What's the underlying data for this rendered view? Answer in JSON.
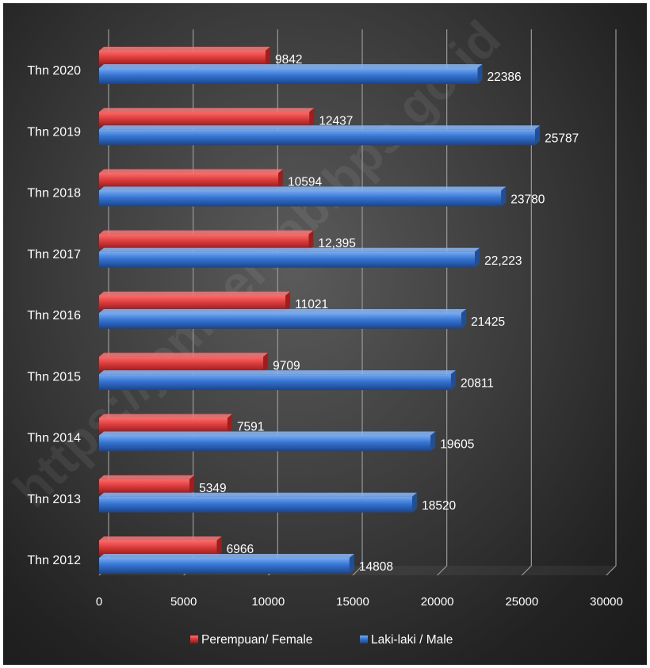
{
  "chart_data": {
    "type": "bar",
    "orientation": "horizontal",
    "categories": [
      "Thn 2020",
      "Thn 2019",
      "Thn 2018",
      "Thn 2017",
      "Thn 2016",
      "Thn 2015",
      "Thn 2014",
      "Thn 2013",
      "Thn 2012"
    ],
    "series": [
      {
        "name": "Perempuan/ Female",
        "color": "#c0282c",
        "values": [
          9842,
          12437,
          10594,
          12395,
          11021,
          9709,
          7591,
          5349,
          6966
        ],
        "labels": [
          "9842",
          "12437",
          "10594",
          "12,395",
          "11021",
          "9709",
          "7591",
          "5349",
          "6966"
        ]
      },
      {
        "name": "Laki-laki / Male",
        "color": "#2f6cc4",
        "values": [
          22386,
          25787,
          23780,
          22223,
          21425,
          20811,
          19605,
          18520,
          14808
        ],
        "labels": [
          "22386",
          "25787",
          "23780",
          "22,223",
          "21425",
          "20811",
          "19605",
          "18520",
          "14808"
        ]
      }
    ],
    "xlim": [
      0,
      30000
    ],
    "xticks": [
      "0",
      "5000",
      "10000",
      "15000",
      "20000",
      "25000",
      "30000"
    ],
    "grid": true,
    "legend_position": "bottom",
    "title": "",
    "xlabel": "",
    "ylabel": ""
  },
  "watermark": "https://jemberkab.bps.go.id"
}
